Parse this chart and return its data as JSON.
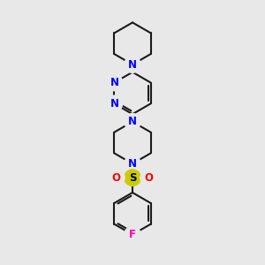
{
  "background_color": "#e8e8e8",
  "bond_color": "#1a1a1a",
  "nitrogen_color": "#0000ff",
  "oxygen_color": "#ff0000",
  "sulfur_color": "#cccc00",
  "fluorine_color": "#ff00aa",
  "bond_width": 1.5,
  "label_fontsize": 8.5,
  "fig_width": 3.0,
  "fig_height": 3.0,
  "dpi": 100,
  "xlim": [
    -2.5,
    2.5
  ],
  "ylim": [
    -4.5,
    4.5
  ]
}
